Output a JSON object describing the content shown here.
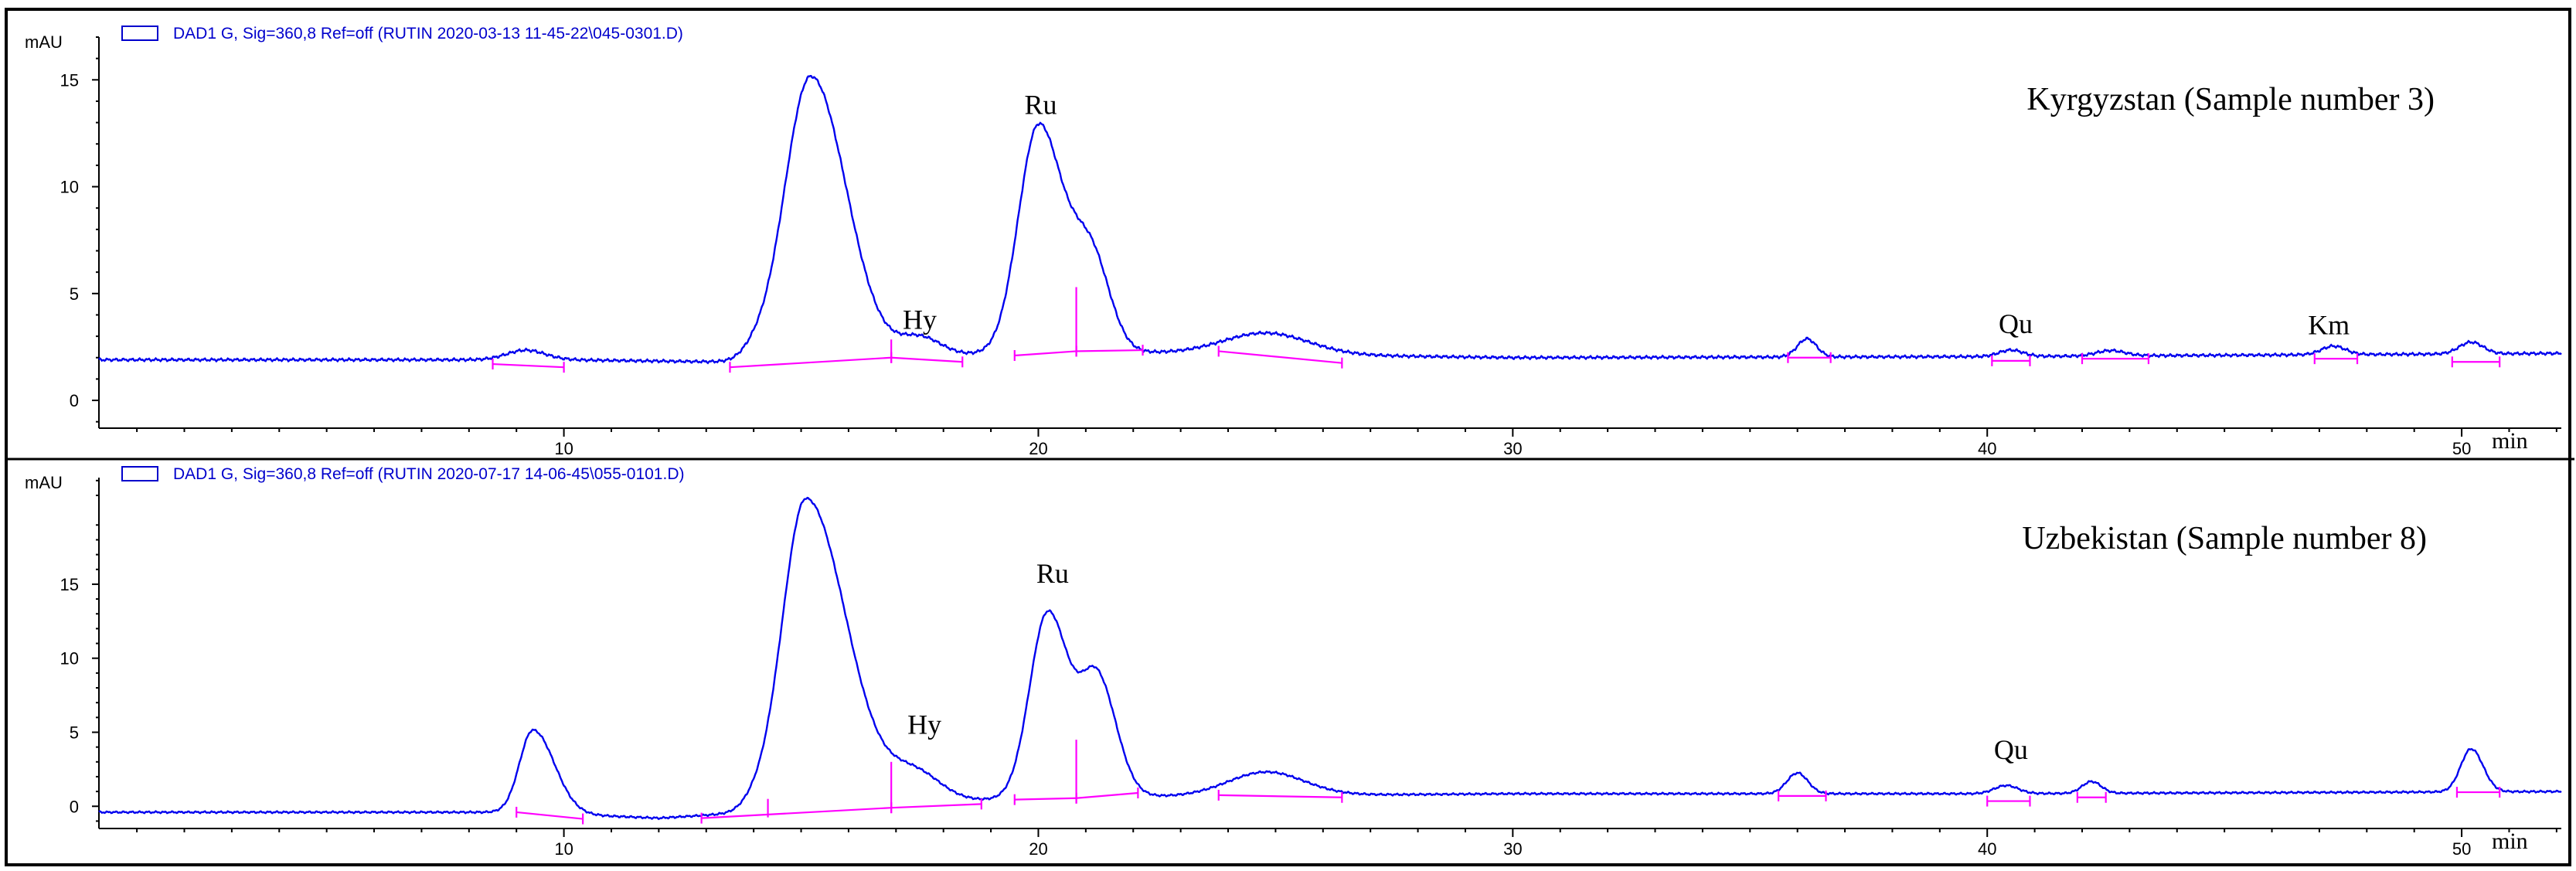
{
  "chart_data": [
    {
      "type": "line",
      "title": "Kyrgyzstan (Sample number 3)",
      "legend": "DAD1 G, Sig=360,8 Ref=off (RUTIN 2020-03-13 11-45-22\\045-0301.D)",
      "ylabel": "mAU",
      "xlabel": "min",
      "xlim": [
        0.2,
        52.1
      ],
      "ylim": [
        -1.3,
        17.0
      ],
      "xticks": [
        10,
        20,
        30,
        40,
        50
      ],
      "xtick_labels": [
        "10",
        "20",
        "30",
        "40",
        "50"
      ],
      "yticks": [
        0,
        5,
        10,
        15
      ],
      "ytick_labels": [
        "0",
        "5",
        "10",
        "15"
      ],
      "grid": false,
      "colors": {
        "trace": "#0000ee",
        "baseline": "#ff00ff",
        "legend": "#0000cc"
      },
      "base": [
        [
          0.2,
          1.9
        ],
        [
          10,
          1.9
        ],
        [
          15,
          1.75
        ],
        [
          20,
          2.3
        ],
        [
          30,
          2.0
        ],
        [
          40,
          2.05
        ],
        [
          52.1,
          2.2
        ]
      ],
      "peaks": [
        {
          "rt": 9.2,
          "height": 0.45,
          "width": 0.4
        },
        {
          "rt": 14.0,
          "height": 0.3,
          "width": 0.25
        },
        {
          "rt": 15.2,
          "height": 13.4,
          "width": 0.55,
          "tail": 0.75
        },
        {
          "rt": 17.5,
          "height": 0.9,
          "width": 0.45
        },
        {
          "rt": 20.0,
          "height": 10.5,
          "width": 0.42,
          "tail": 0.5
        },
        {
          "rt": 21.1,
          "height": 4.5,
          "width": 0.42,
          "tail": 0.4
        },
        {
          "rt": 24.8,
          "height": 1.0,
          "width": 0.9
        },
        {
          "rt": 36.2,
          "height": 0.85,
          "width": 0.2
        },
        {
          "rt": 40.5,
          "height": 0.3,
          "width": 0.25
        },
        {
          "rt": 42.6,
          "height": 0.25,
          "width": 0.3
        },
        {
          "rt": 47.3,
          "height": 0.4,
          "width": 0.25
        },
        {
          "rt": 50.2,
          "height": 0.55,
          "width": 0.25
        }
      ],
      "baselines": [
        [
          [
            8.5,
            1.7
          ],
          [
            10.0,
            1.55
          ]
        ],
        [
          [
            13.5,
            1.55
          ],
          [
            16.9,
            2.0
          ]
        ],
        [
          [
            16.9,
            2.0
          ],
          [
            18.4,
            1.8
          ]
        ],
        [
          [
            19.5,
            2.1
          ],
          [
            20.8,
            2.3
          ]
        ],
        [
          [
            20.8,
            2.3
          ],
          [
            22.2,
            2.35
          ]
        ],
        [
          [
            23.8,
            2.3
          ],
          [
            26.4,
            1.75
          ]
        ],
        [
          [
            35.8,
            2.0
          ],
          [
            36.7,
            2.0
          ]
        ],
        [
          [
            40.1,
            1.85
          ],
          [
            40.9,
            1.85
          ]
        ],
        [
          [
            42.0,
            1.95
          ],
          [
            43.4,
            1.95
          ]
        ],
        [
          [
            46.9,
            1.95
          ],
          [
            47.8,
            1.95
          ]
        ],
        [
          [
            49.8,
            1.8
          ],
          [
            50.8,
            1.8
          ]
        ]
      ],
      "droplines": [
        [
          16.9,
          2.0,
          2.85
        ],
        [
          20.8,
          2.3,
          5.3
        ]
      ],
      "annotations": [
        {
          "text": "Ru",
          "x": 20.05,
          "y": 13.4
        },
        {
          "text": "Hy",
          "x": 17.5,
          "y": 3.35
        },
        {
          "text": "Qu",
          "x": 40.6,
          "y": 3.15
        },
        {
          "text": "Km",
          "x": 47.2,
          "y": 3.1
        }
      ]
    },
    {
      "type": "line",
      "title": "Uzbekistan (Sample number 8)",
      "legend": "DAD1 G, Sig=360,8 Ref=off (RUTIN 2020-07-17 14-06-45\\055-0101.D)",
      "ylabel": "mAU",
      "xlabel": "min",
      "xlim": [
        0.2,
        52.1
      ],
      "ylim": [
        -1.5,
        22.2
      ],
      "xticks": [
        10,
        20,
        30,
        40,
        50
      ],
      "xtick_labels": [
        "10",
        "20",
        "30",
        "40",
        "50"
      ],
      "yticks": [
        0,
        5,
        10,
        15
      ],
      "ytick_labels": [
        "0",
        "5",
        "10",
        "15"
      ],
      "grid": false,
      "colors": {
        "trace": "#0000ee",
        "baseline": "#ff00ff",
        "legend": "#0000cc"
      },
      "base": [
        [
          0.2,
          -0.4
        ],
        [
          9,
          -0.4
        ],
        [
          12,
          -0.8
        ],
        [
          14.5,
          -0.3
        ],
        [
          20,
          0.6
        ],
        [
          30,
          0.85
        ],
        [
          40,
          0.85
        ],
        [
          52.1,
          1.0
        ]
      ],
      "peaks": [
        {
          "rt": 9.35,
          "height": 5.6,
          "width": 0.28,
          "tail": 0.45
        },
        {
          "rt": 14.0,
          "height": 0.4,
          "width": 0.25
        },
        {
          "rt": 15.1,
          "height": 21.0,
          "width": 0.5,
          "tail": 0.85
        },
        {
          "rt": 17.4,
          "height": 2.0,
          "width": 0.55
        },
        {
          "rt": 20.2,
          "height": 12.5,
          "width": 0.38,
          "tail": 0.45
        },
        {
          "rt": 21.25,
          "height": 7.8,
          "width": 0.35,
          "tail": 0.4
        },
        {
          "rt": 24.8,
          "height": 1.6,
          "width": 0.8
        },
        {
          "rt": 36.0,
          "height": 1.4,
          "width": 0.22
        },
        {
          "rt": 40.4,
          "height": 0.55,
          "width": 0.25
        },
        {
          "rt": 42.2,
          "height": 0.8,
          "width": 0.2
        },
        {
          "rt": 50.2,
          "height": 2.9,
          "width": 0.22,
          "tail": 0.25
        }
      ],
      "baselines": [
        [
          [
            9.0,
            -0.4
          ],
          [
            10.4,
            -0.85
          ]
        ],
        [
          [
            12.9,
            -0.8
          ],
          [
            16.9,
            -0.1
          ]
        ],
        [
          [
            16.9,
            -0.1
          ],
          [
            18.8,
            0.15
          ]
        ],
        [
          [
            19.5,
            0.45
          ],
          [
            20.8,
            0.55
          ]
        ],
        [
          [
            20.8,
            0.55
          ],
          [
            22.1,
            0.9
          ]
        ],
        [
          [
            23.8,
            0.75
          ],
          [
            26.4,
            0.6
          ]
        ],
        [
          [
            35.6,
            0.7
          ],
          [
            36.6,
            0.7
          ]
        ],
        [
          [
            40.0,
            0.35
          ],
          [
            40.9,
            0.35
          ]
        ],
        [
          [
            41.9,
            0.6
          ],
          [
            42.5,
            0.6
          ]
        ],
        [
          [
            49.9,
            0.95
          ],
          [
            50.8,
            0.95
          ]
        ]
      ],
      "droplines": [
        [
          14.3,
          -0.75,
          0.5
        ],
        [
          16.9,
          -0.1,
          3.0
        ],
        [
          20.8,
          0.55,
          4.5
        ]
      ],
      "annotations": [
        {
          "text": "Ru",
          "x": 20.3,
          "y": 15.1
        },
        {
          "text": "Hy",
          "x": 17.6,
          "y": 4.9
        },
        {
          "text": "Qu",
          "x": 40.5,
          "y": 3.2
        }
      ]
    }
  ]
}
